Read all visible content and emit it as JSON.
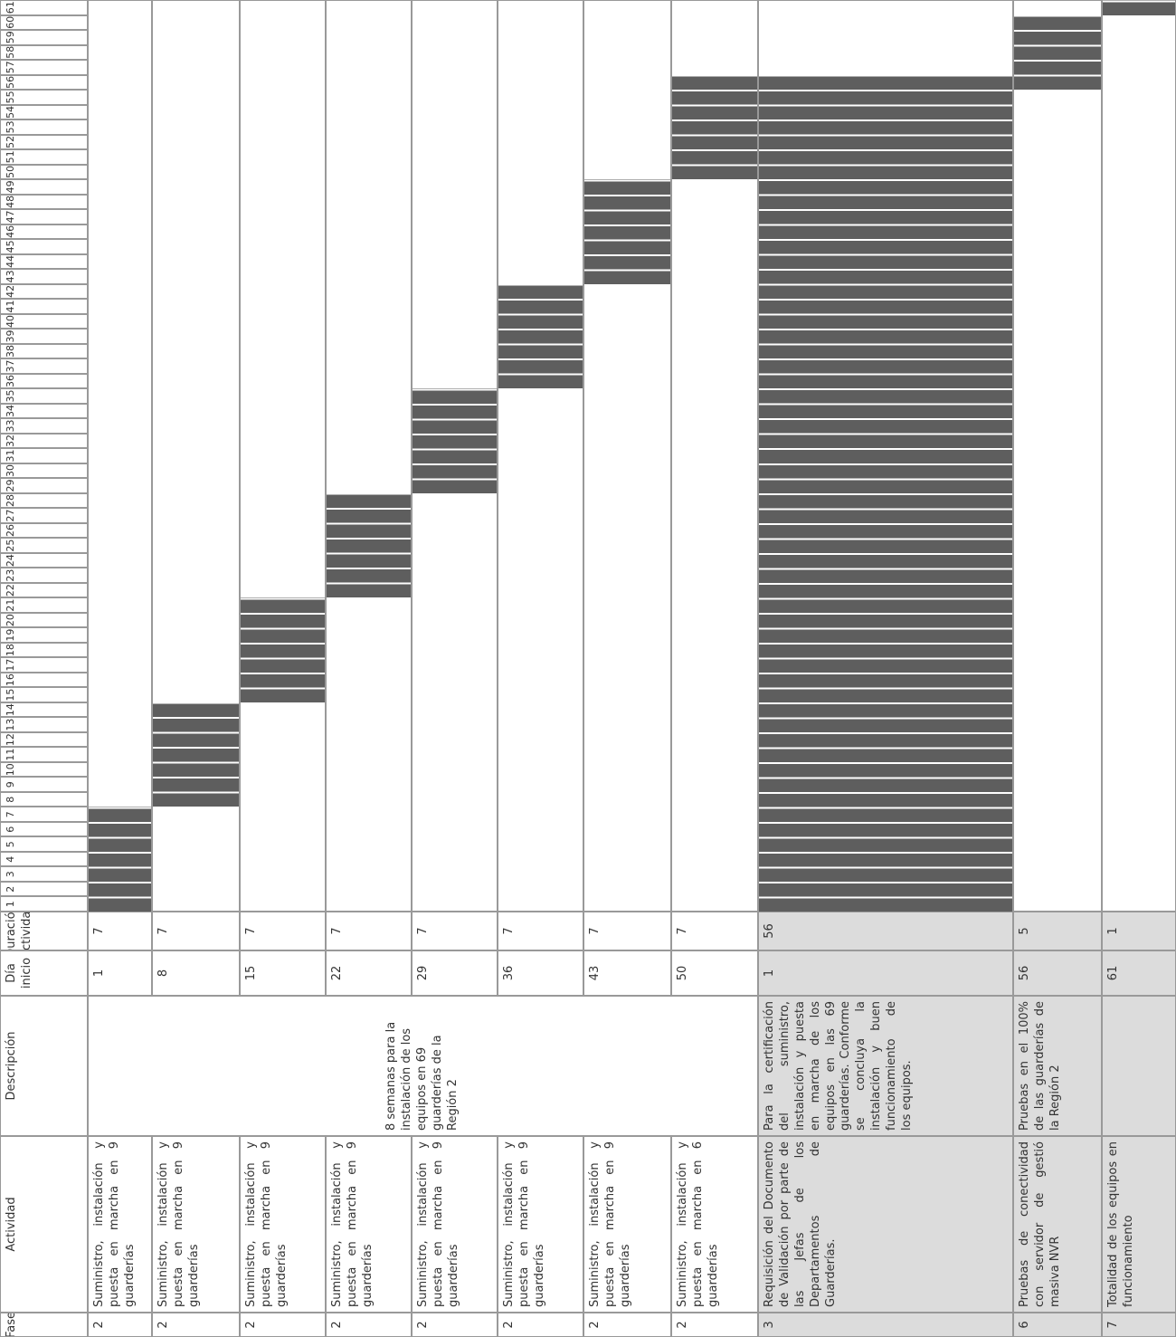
{
  "header": {
    "fase": "Fase",
    "actividad": "Actividad",
    "descripcion": "Descripción",
    "inicio": "Día inicio",
    "duracion": "Duración Actividad"
  },
  "days": [
    1,
    2,
    3,
    4,
    5,
    6,
    7,
    8,
    9,
    10,
    11,
    12,
    13,
    14,
    15,
    16,
    17,
    18,
    19,
    20,
    21,
    22,
    23,
    24,
    25,
    26,
    27,
    28,
    29,
    30,
    31,
    32,
    33,
    34,
    35,
    36,
    37,
    38,
    39,
    40,
    41,
    42,
    43,
    44,
    45,
    46,
    47,
    48,
    49,
    50,
    51,
    52,
    53,
    54,
    55,
    56,
    57,
    58,
    59,
    60,
    61
  ],
  "shared_description": "8 semanas para la instalación de los equipos en 69 guarderías de la Región 2",
  "rows": [
    {
      "fase": 2,
      "actividad": "Suministro, instalación y puesta en marcha en 9 guarderías",
      "inicio": 1,
      "duracion": 7
    },
    {
      "fase": 2,
      "actividad": "Suministro, instalación y puesta en marcha en 9 guarderías",
      "inicio": 8,
      "duracion": 7
    },
    {
      "fase": 2,
      "actividad": "Suministro, instalación y puesta en marcha en 9 guarderías",
      "inicio": 15,
      "duracion": 7
    },
    {
      "fase": 2,
      "actividad": "Suministro, instalación y puesta en marcha en 9 guarderías",
      "inicio": 22,
      "duracion": 7
    },
    {
      "fase": 2,
      "actividad": "Suministro, instalación y puesta en marcha en 9 guarderías",
      "inicio": 29,
      "duracion": 7
    },
    {
      "fase": 2,
      "actividad": "Suministro, instalación y puesta en marcha en 9 guarderías",
      "inicio": 36,
      "duracion": 7
    },
    {
      "fase": 2,
      "actividad": "Suministro, instalación y puesta en marcha en 9 guarderías",
      "inicio": 43,
      "duracion": 7
    },
    {
      "fase": 2,
      "actividad": "Suministro, instalación y puesta en marcha en 6 guarderías",
      "inicio": 50,
      "duracion": 7
    },
    {
      "fase": 3,
      "actividad": "Requisición del Documento de Validación por parte de las Jefas de los Departamentos de Guarderías.",
      "descripcion": "Para la certificación del suministro, instalación y puesta en marcha de los equipos en las 69 guarderías. Conforme se concluya la instalación y buen funcionamiento de los equipos.",
      "inicio": 1,
      "duracion": 56
    },
    {
      "fase": 6,
      "actividad": "Pruebas de conectividad con servidor de gestió masiva NVR",
      "descripcion": "Pruebas en el 100% de las guarderías de la Región 2",
      "inicio": 56,
      "duracion": 5
    },
    {
      "fase": 7,
      "actividad": "Totalidad de los equipos en funcionamiento",
      "inicio": 61,
      "duracion": 1
    }
  ]
}
